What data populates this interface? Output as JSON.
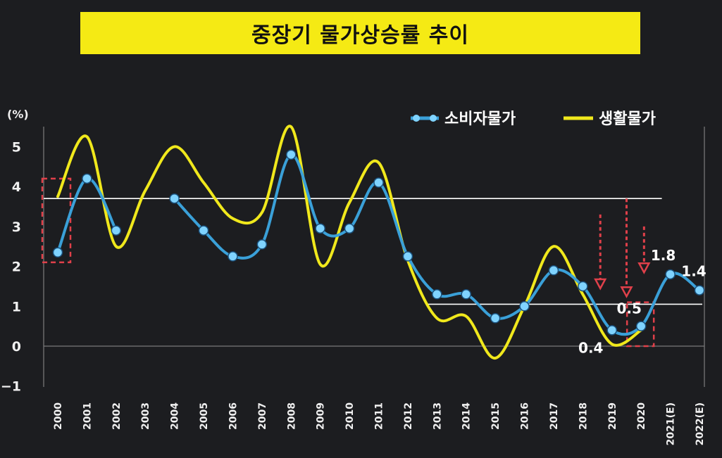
{
  "chart_data": {
    "type": "line",
    "title": "중장기 물가상승률 추이",
    "unit_label": "(%)",
    "ylim": [
      -1,
      5.5
    ],
    "y_ticks": [
      "−1",
      "0",
      "1",
      "2",
      "3",
      "4",
      "5"
    ],
    "y_tick_values": [
      -1,
      0,
      1,
      2,
      3,
      4,
      5
    ],
    "categories": [
      "2000",
      "2001",
      "2002",
      "2003",
      "2004",
      "2005",
      "2006",
      "2007",
      "2008",
      "2009",
      "2010",
      "2011",
      "2012",
      "2013",
      "2014",
      "2015",
      "2016",
      "2017",
      "2018",
      "2019",
      "2020",
      "2021(E)",
      "2022(E)"
    ],
    "series": [
      {
        "name": "소비자물가",
        "color": "#3aa0d8",
        "marker_color": "#7fd3ff",
        "values": [
          2.35,
          4.2,
          2.9,
          null,
          3.7,
          2.9,
          2.25,
          2.55,
          4.8,
          2.95,
          2.95,
          4.1,
          2.25,
          1.3,
          1.3,
          0.7,
          1.0,
          1.9,
          1.5,
          0.4,
          0.5,
          1.8,
          1.4
        ]
      },
      {
        "name": "생활물가",
        "color": "#f0e81c",
        "values": [
          3.75,
          5.25,
          2.5,
          3.9,
          5.0,
          4.1,
          3.2,
          3.35,
          5.5,
          2.05,
          3.6,
          4.6,
          2.15,
          0.7,
          0.75,
          -0.3,
          1.0,
          2.5,
          1.3,
          0.05,
          0.4,
          null,
          null
        ]
      }
    ],
    "reference_lines": [
      {
        "value": 3.7,
        "from": "2000",
        "to": "2021(E)",
        "color": "#ffffff"
      },
      {
        "value": 1.05,
        "from": "2013",
        "to": "2022(E)",
        "color": "#ffffff"
      }
    ],
    "annotations": [
      {
        "text": "0.4",
        "category": "2019"
      },
      {
        "text": "0.5",
        "category": "2020"
      },
      {
        "text": "1.8",
        "category": "2021(E)"
      },
      {
        "text": "1.4",
        "category": "2022(E)"
      }
    ],
    "highlight_boxes": [
      {
        "category": "2000",
        "y_from": 2.1,
        "y_to": 4.2
      },
      {
        "category": "2020",
        "y_from": 0.0,
        "y_to": 1.1
      }
    ],
    "down_arrows": [
      {
        "category": "2019",
        "offset": -0.4,
        "y_from": 3.3,
        "y_to": 1.5
      },
      {
        "category": "2019",
        "offset": 0.5,
        "y_from": 3.7,
        "y_to": 1.3
      },
      {
        "category": "2020",
        "offset": 0.1,
        "y_from": 3.0,
        "y_to": 1.9
      }
    ],
    "legend_position": "top-right",
    "grid": false
  }
}
